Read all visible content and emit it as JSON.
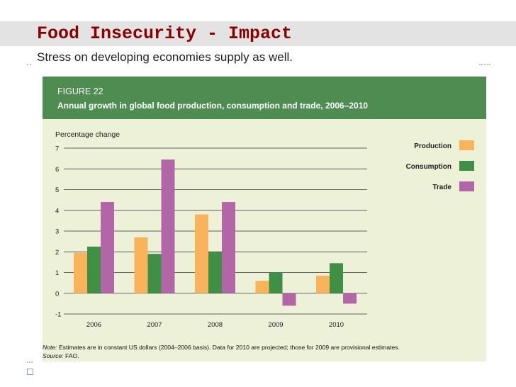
{
  "slide": {
    "title": "Food Insecurity - Impact",
    "subtitle": "Stress on developing economies supply as well."
  },
  "figure": {
    "label": "FIGURE 22",
    "caption": "Annual growth in global food production, consumption and trade, 2006–2010",
    "note_label": "Note:",
    "note_text": "Estimates are in constant US dollars (2004–2006 basis). Data for 2010 are projected; those for 2009 are provisional estimates.",
    "source_label": "Source:",
    "source_text": "FAO."
  },
  "chart_data": {
    "type": "bar",
    "title": "Annual growth in global food production, consumption and trade, 2006–2010",
    "ylabel": "Percentage change",
    "xlabel": "",
    "categories": [
      "2006",
      "2007",
      "2008",
      "2009",
      "2010"
    ],
    "ylim": [
      -1,
      7
    ],
    "yticks": [
      -1,
      0,
      1,
      2,
      3,
      4,
      5,
      6,
      7
    ],
    "grid": true,
    "legend_position": "right",
    "series": [
      {
        "name": "Production",
        "color": "#f9b35a",
        "values": [
          1.95,
          2.7,
          3.8,
          0.6,
          0.85
        ]
      },
      {
        "name": "Consumption",
        "color": "#3f8f45",
        "values": [
          2.25,
          1.9,
          2.0,
          1.0,
          1.45
        ]
      },
      {
        "name": "Trade",
        "color": "#b366a7",
        "values": [
          4.4,
          6.45,
          4.4,
          -0.6,
          -0.5
        ]
      }
    ]
  },
  "colors": {
    "title_text": "#8a0000",
    "figure_header": "#4f8c52",
    "figure_background": "#ecf1d8"
  }
}
